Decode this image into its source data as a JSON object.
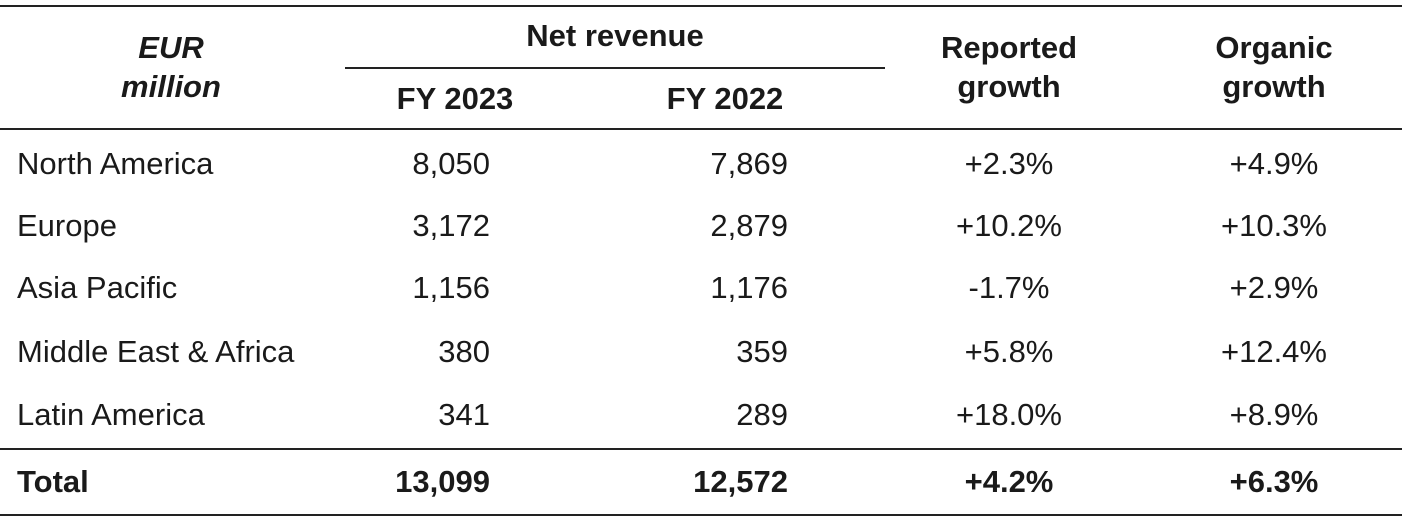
{
  "header": {
    "unit_line1": "EUR",
    "unit_line2": "million",
    "group_label": "Net revenue",
    "col_fy2023": "FY 2023",
    "col_fy2022": "FY 2022",
    "reported_line1": "Reported",
    "reported_line2": "growth",
    "organic_line1": "Organic",
    "organic_line2": "growth"
  },
  "rows": [
    {
      "region": "North America",
      "fy2023": "8,050",
      "fy2022": "7,869",
      "reported": "+2.3%",
      "organic": "+4.9%"
    },
    {
      "region": "Europe",
      "fy2023": "3,172",
      "fy2022": "2,879",
      "reported": "+10.2%",
      "organic": "+10.3%"
    },
    {
      "region": "Asia Pacific",
      "fy2023": "1,156",
      "fy2022": "1,176",
      "reported": "-1.7%",
      "organic": "+2.9%"
    },
    {
      "region": "Middle East & Africa",
      "fy2023": "380",
      "fy2022": "359",
      "reported": "+5.8%",
      "organic": "+12.4%"
    },
    {
      "region": "Latin America",
      "fy2023": "341",
      "fy2022": "289",
      "reported": "+18.0%",
      "organic": "+8.9%"
    }
  ],
  "total": {
    "region": "Total",
    "fy2023": "13,099",
    "fy2022": "12,572",
    "reported": "+4.2%",
    "organic": "+6.3%"
  }
}
